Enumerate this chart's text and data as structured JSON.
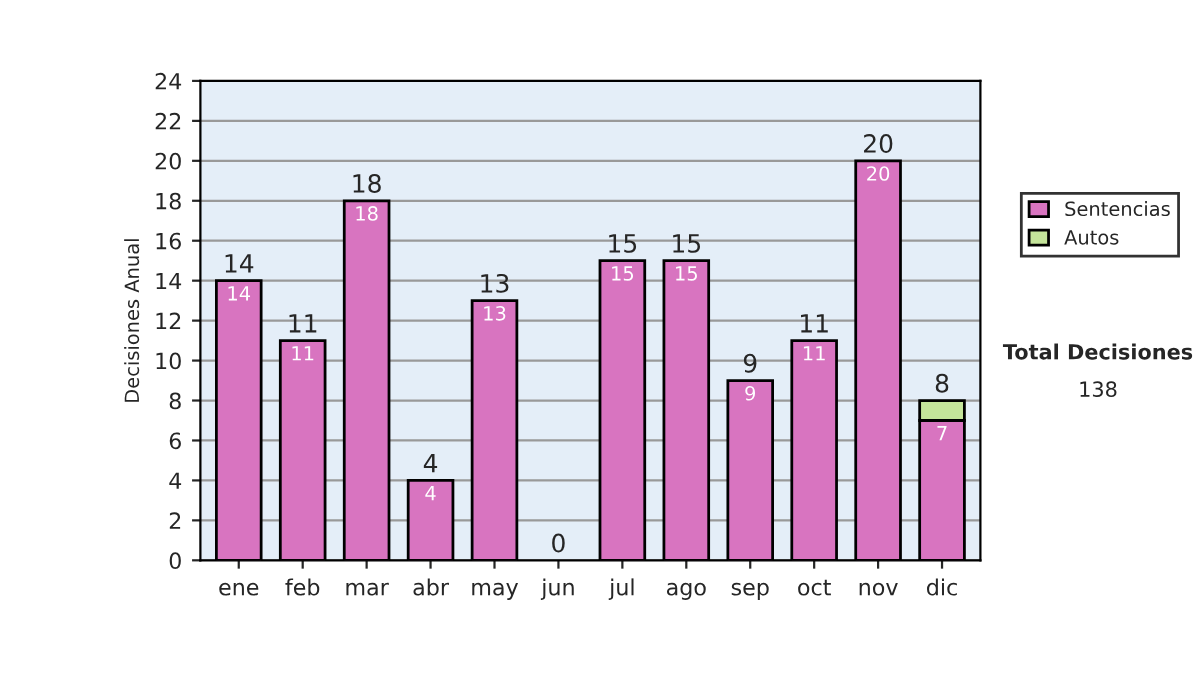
{
  "chart_data": {
    "type": "bar",
    "stacked": true,
    "ylabel": "Decisiones Anual",
    "categories": [
      "ene",
      "feb",
      "mar",
      "abr",
      "may",
      "jun",
      "jul",
      "ago",
      "sep",
      "oct",
      "nov",
      "dic"
    ],
    "series": [
      {
        "name": "Sentencias",
        "color": "#d874c0",
        "values": [
          14,
          11,
          18,
          4,
          13,
          0,
          15,
          15,
          9,
          11,
          20,
          7
        ],
        "value_labels": [
          "14",
          "11",
          "18",
          "4",
          "13",
          null,
          "15",
          "15",
          "9",
          "11",
          "20",
          "7"
        ]
      },
      {
        "name": "Autos",
        "color": "#c4e49a",
        "values": [
          0,
          0,
          0,
          0,
          0,
          0,
          0,
          0,
          0,
          0,
          0,
          1
        ]
      }
    ],
    "totals": [
      "14",
      "11",
      "18",
      "4",
      "13",
      "0",
      "15",
      "15",
      "9",
      "11",
      "20",
      "8"
    ],
    "ylim": [
      0,
      24
    ],
    "yticks": [
      0,
      2,
      4,
      6,
      8,
      10,
      12,
      14,
      16,
      18,
      20,
      22,
      24
    ],
    "grid": "y",
    "legend": "right",
    "annotations": [
      "Total Decisiones",
      "138"
    ]
  }
}
